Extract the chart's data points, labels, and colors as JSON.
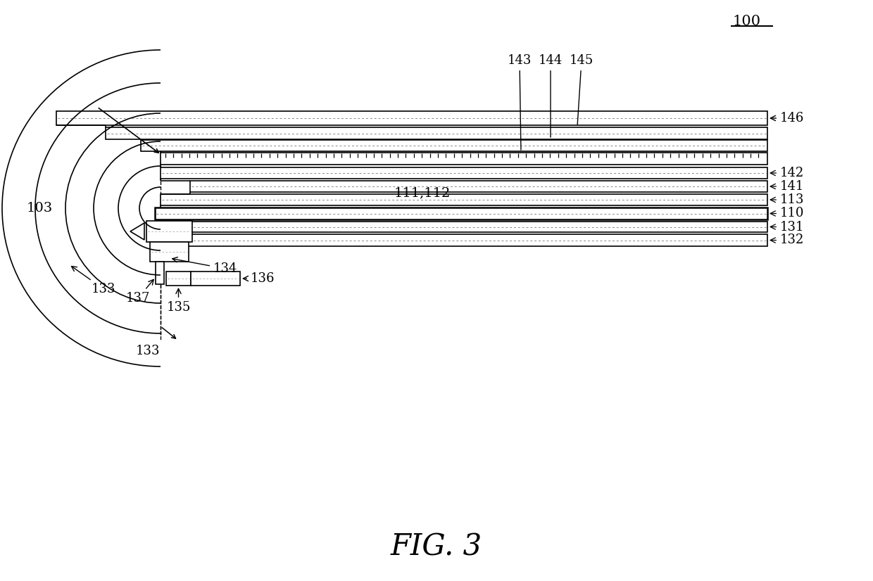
{
  "title": "FIG. 3",
  "label_100": "100",
  "label_103": "103",
  "label_110": "110",
  "label_111_112": "111,112",
  "label_113": "113",
  "label_131": "131",
  "label_132": "132",
  "label_133a": "133",
  "label_133b": "133",
  "label_134": "134",
  "label_135": "135",
  "label_136": "136",
  "label_137": "137",
  "label_141": "141",
  "label_142": "142",
  "label_143": "143",
  "label_144": "144",
  "label_145": "145",
  "label_146": "146",
  "bg_color": "#ffffff",
  "line_color": "#000000"
}
